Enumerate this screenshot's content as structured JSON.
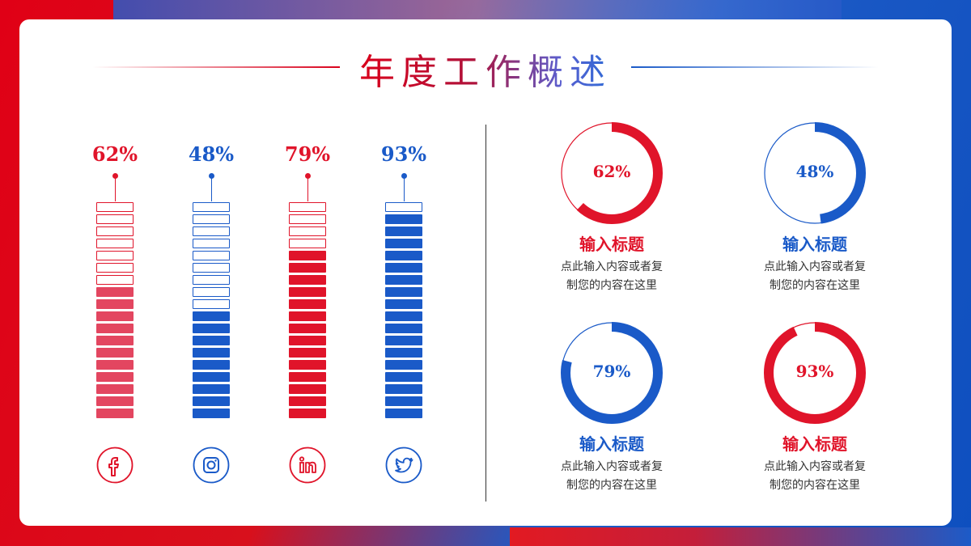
{
  "title": "年度工作概述",
  "colors": {
    "red": "#e0142a",
    "red_fill": "#e34660",
    "blue": "#1a5ac8"
  },
  "chart_data": [
    {
      "type": "bar",
      "title": "",
      "categories": [
        "facebook-icon",
        "instagram-icon",
        "linkedin-icon",
        "twitter-icon"
      ],
      "values": [
        62,
        48,
        79,
        93
      ],
      "labels": [
        "62%",
        "48%",
        "79%",
        "93%"
      ],
      "ylim": [
        0,
        100
      ],
      "segments": 18
    },
    {
      "type": "pie",
      "title": "",
      "values": [
        62,
        48,
        79,
        93
      ],
      "labels": [
        "62%",
        "48%",
        "79%",
        "93%"
      ]
    }
  ],
  "bars": [
    {
      "value": 62,
      "label": "62%",
      "color": "#e0142a",
      "fill": "#e34660",
      "icon": "facebook-icon"
    },
    {
      "value": 48,
      "label": "48%",
      "color": "#1a5ac8",
      "fill": "#1a5ac8",
      "icon": "instagram-icon"
    },
    {
      "value": 79,
      "label": "79%",
      "color": "#e0142a",
      "fill": "#e0142a",
      "icon": "linkedin-icon"
    },
    {
      "value": 93,
      "label": "93%",
      "color": "#1a5ac8",
      "fill": "#1a5ac8",
      "icon": "twitter-icon"
    }
  ],
  "gauges": [
    {
      "value": 62,
      "label": "62%",
      "color": "#e0142a",
      "title": "输入标题",
      "desc1": "点此输入内容或者复",
      "desc2": "制您的内容在这里"
    },
    {
      "value": 48,
      "label": "48%",
      "color": "#1a5ac8",
      "title": "输入标题",
      "desc1": "点此输入内容或者复",
      "desc2": "制您的内容在这里"
    },
    {
      "value": 79,
      "label": "79%",
      "color": "#1a5ac8",
      "title": "输入标题",
      "desc1": "点此输入内容或者复",
      "desc2": "制您的内容在这里"
    },
    {
      "value": 93,
      "label": "93%",
      "color": "#e0142a",
      "title": "输入标题",
      "desc1": "点此输入内容或者复",
      "desc2": "制您的内容在这里"
    }
  ]
}
